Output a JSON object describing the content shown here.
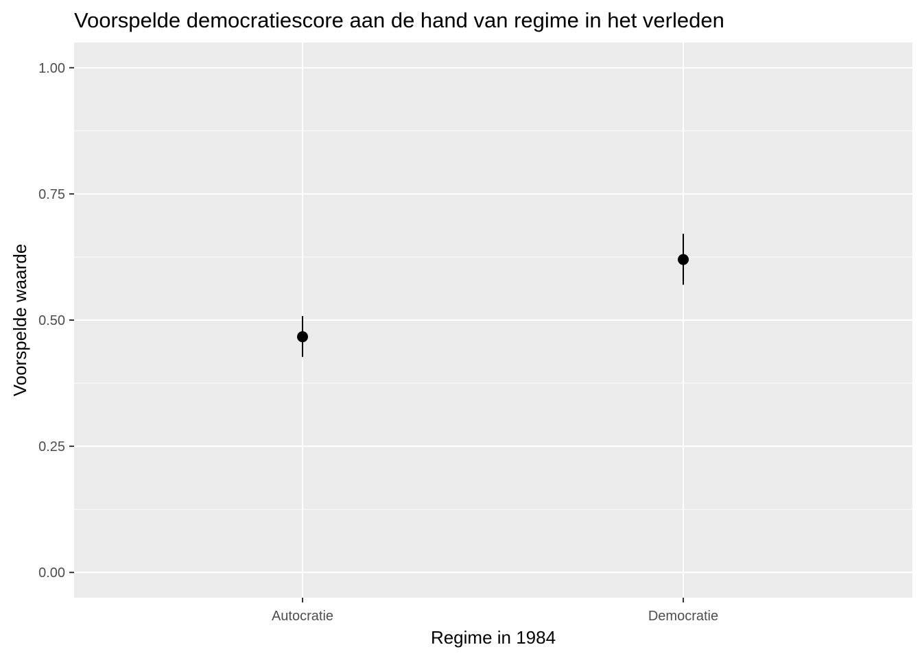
{
  "chart_data": {
    "type": "scatter",
    "title": "Voorspelde democratiescore aan de hand van regime in het verleden",
    "xlabel": "Regime in 1984",
    "ylabel": "Voorspelde waarde",
    "categories": [
      "Autocratie",
      "Democratie"
    ],
    "series": [
      {
        "name": "Voorspelde waarde",
        "values": [
          0.467,
          0.62
        ],
        "ci_lower": [
          0.427,
          0.57
        ],
        "ci_upper": [
          0.508,
          0.671
        ]
      }
    ],
    "ylim": [
      -0.05,
      1.05
    ],
    "y_ticks": [
      0.0,
      0.25,
      0.5,
      0.75,
      1.0
    ],
    "y_tick_labels": [
      "0.00",
      "0.25",
      "0.50",
      "0.75",
      "1.00"
    ],
    "grid": true,
    "colors": {
      "panel_background": "#ebebeb",
      "grid_line": "#ffffff",
      "point": "#000000",
      "tick": "#333333",
      "tick_label": "#4d4d4d"
    }
  }
}
